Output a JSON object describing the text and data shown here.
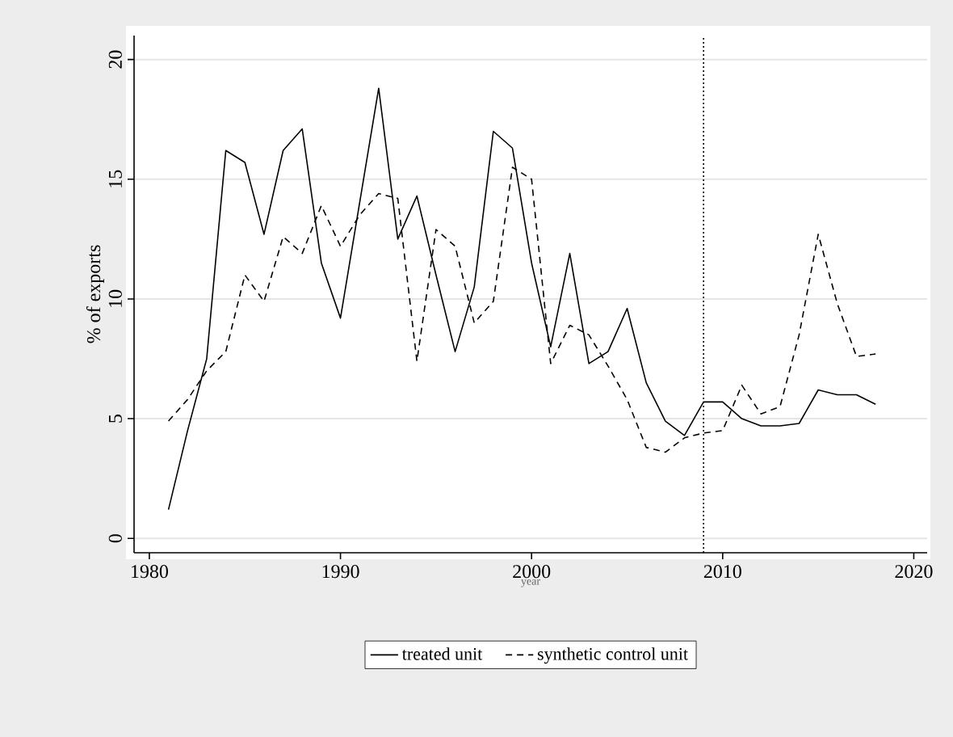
{
  "chart_data": {
    "type": "line",
    "xlabel": "year",
    "ylabel": "% of exports",
    "x": [
      1981,
      1982,
      1983,
      1984,
      1985,
      1986,
      1987,
      1988,
      1989,
      1990,
      1991,
      1992,
      1993,
      1994,
      1995,
      1996,
      1997,
      1998,
      1999,
      2000,
      2001,
      2002,
      2003,
      2004,
      2005,
      2006,
      2007,
      2008,
      2009,
      2010,
      2011,
      2012,
      2013,
      2014,
      2015,
      2016,
      2017,
      2018
    ],
    "series": [
      {
        "name": "treated unit",
        "color": "#000000",
        "line_style": "solid",
        "values": [
          1.2,
          4.5,
          7.5,
          16.2,
          15.7,
          12.7,
          16.2,
          17.1,
          11.5,
          9.2,
          14.0,
          18.8,
          12.5,
          14.3,
          11.0,
          7.8,
          10.5,
          17.0,
          16.3,
          11.5,
          8.0,
          11.9,
          7.3,
          7.8,
          9.6,
          6.5,
          4.9,
          4.3,
          5.7,
          5.7,
          5.0,
          4.7,
          4.7,
          4.8,
          6.2,
          6.0,
          6.0,
          5.6
        ]
      },
      {
        "name": "synthetic control unit",
        "color": "#000000",
        "line_style": "dashed",
        "values": [
          4.9,
          5.8,
          7.0,
          7.8,
          11.0,
          9.9,
          12.6,
          11.9,
          13.9,
          12.2,
          13.5,
          14.4,
          14.2,
          7.4,
          12.9,
          12.2,
          9.0,
          9.9,
          15.5,
          15.0,
          7.3,
          8.9,
          8.5,
          7.2,
          5.8,
          3.8,
          3.6,
          4.2,
          4.4,
          4.5,
          6.4,
          5.2,
          5.5,
          8.5,
          12.7,
          9.8,
          7.6,
          7.7
        ]
      }
    ],
    "xlim": [
      1979.2,
      2020.7
    ],
    "ylim": [
      -0.6,
      21.0
    ],
    "xticks": [
      1980,
      1990,
      2000,
      2010,
      2020
    ],
    "yticks": [
      0,
      5,
      10,
      15,
      20
    ],
    "ref_lines": [
      {
        "axis": "x",
        "value": 2009,
        "line_style": "dotted",
        "color": "#000000"
      }
    ],
    "grid": "y",
    "legend": "bottom"
  }
}
